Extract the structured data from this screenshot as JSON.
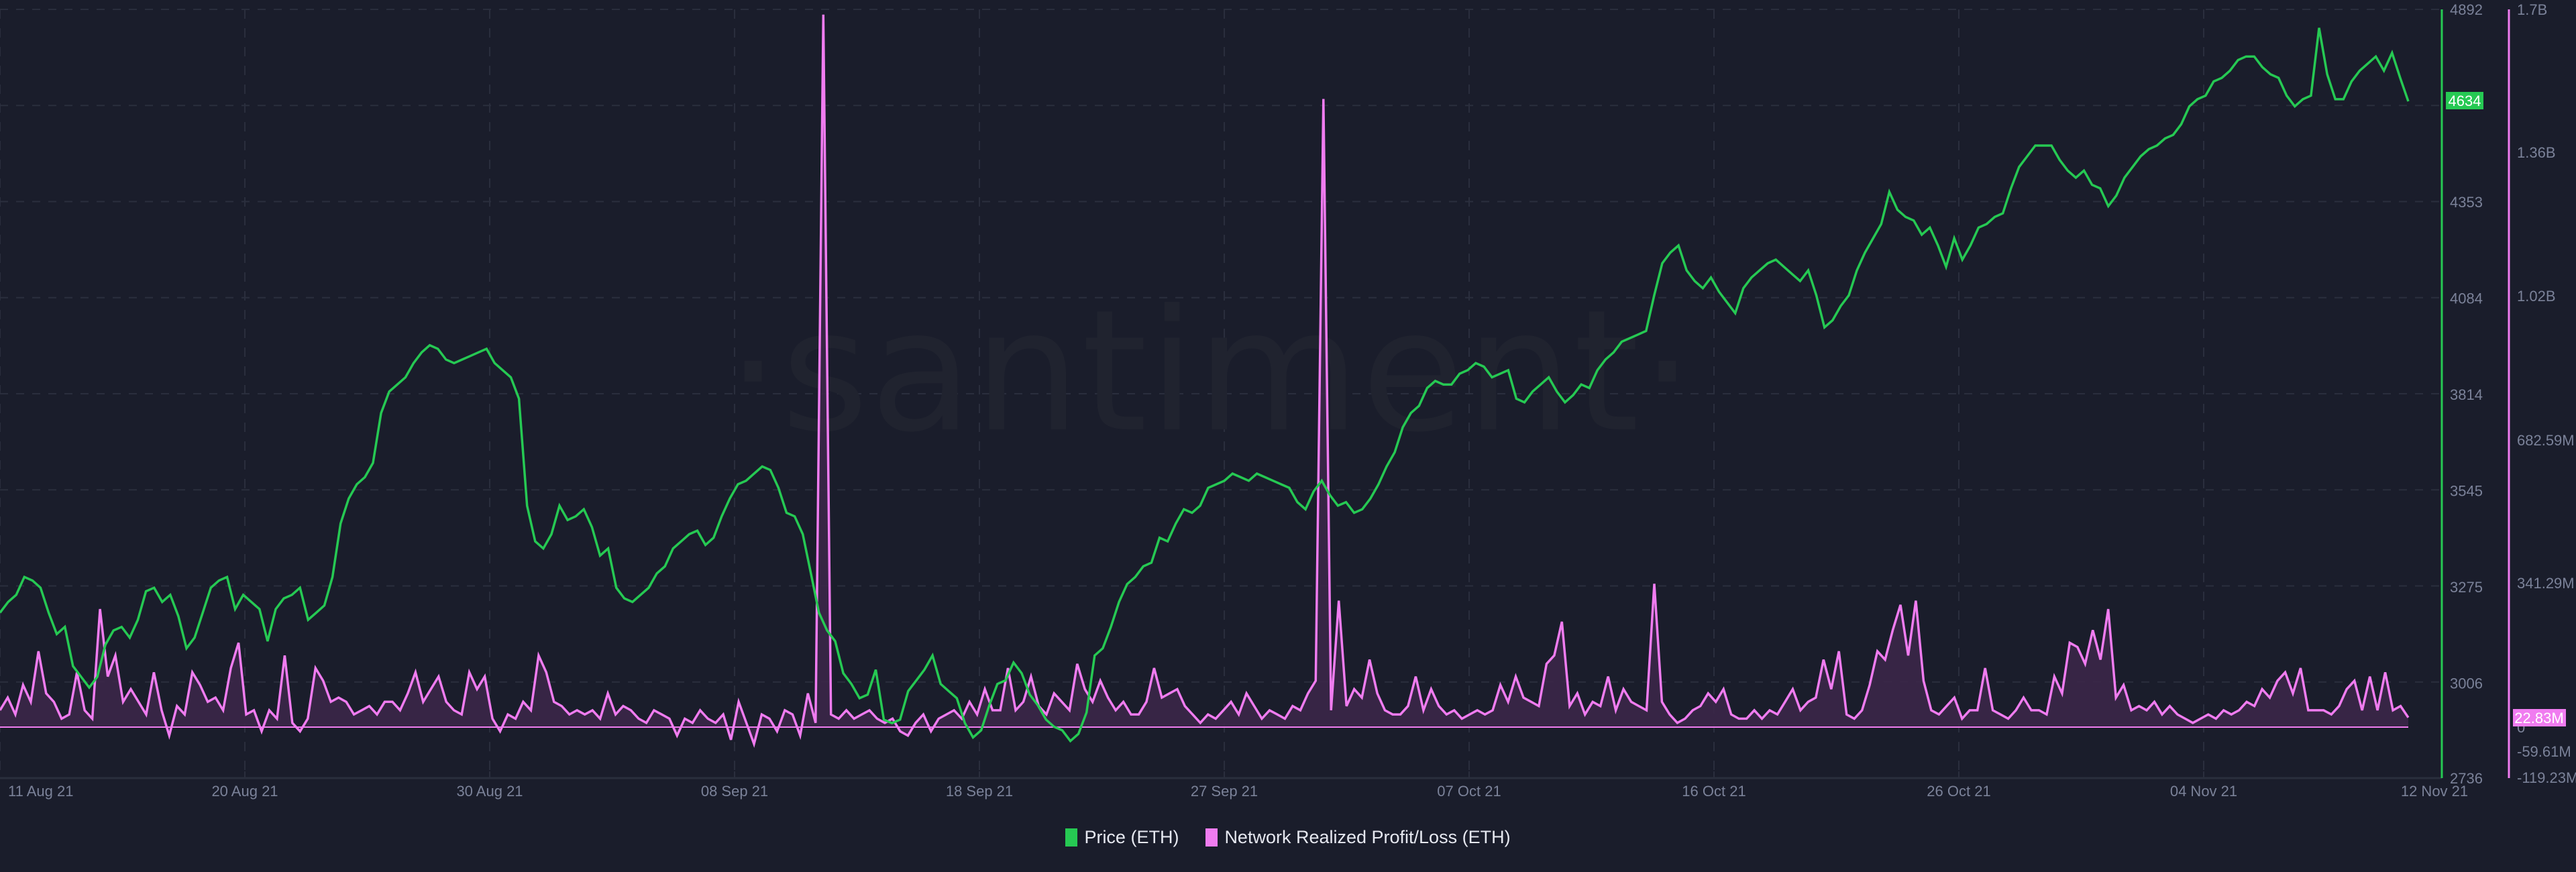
{
  "legend": {
    "items": [
      {
        "label": "Price (ETH)",
        "color": "#26c953"
      },
      {
        "label": "Network Realized Profit/Loss (ETH)",
        "color": "#f07cf0"
      }
    ]
  },
  "watermark": "·santiment·",
  "colors": {
    "background": "#1a1d2b",
    "grid": "#2a2e3d",
    "axis_text": "#7b8299",
    "price": "#26c953",
    "pnl": "#f07cf0",
    "pnl_fill": "#3b2748"
  },
  "price_axis": {
    "ticks": [
      "4892",
      "4353",
      "4084",
      "3814",
      "3545",
      "3275",
      "3006",
      "2736"
    ],
    "current_label": "4634"
  },
  "pnl_axis": {
    "ticks": [
      "1.7B",
      "1.36B",
      "1.02B",
      "682.59M",
      "341.29M",
      "0",
      "-59.61M",
      "-119.23M"
    ],
    "current_label": "22.83M"
  },
  "x_axis": {
    "ticks": [
      "11 Aug 21",
      "20 Aug 21",
      "30 Aug 21",
      "08 Sep 21",
      "18 Sep 21",
      "27 Sep 21",
      "07 Oct 21",
      "16 Oct 21",
      "26 Oct 21",
      "04 Nov 21",
      "12 Nov 21"
    ]
  },
  "chart_data": {
    "type": "line",
    "title": "",
    "xlabel": "",
    "x_start": "11 Aug 21",
    "x_end": "12 Nov 21",
    "x_step_days": 0.5,
    "legend_position": "bottom",
    "grid": true,
    "series": [
      {
        "name": "Price (ETH)",
        "axis": "left-inner",
        "ylim": [
          2736,
          4892
        ],
        "values": [
          3200,
          3230,
          3250,
          3300,
          3290,
          3270,
          3200,
          3140,
          3160,
          3050,
          3020,
          2990,
          3020,
          3110,
          3150,
          3160,
          3130,
          3180,
          3260,
          3270,
          3230,
          3250,
          3190,
          3100,
          3130,
          3200,
          3270,
          3290,
          3300,
          3210,
          3250,
          3230,
          3210,
          3120,
          3210,
          3240,
          3250,
          3270,
          3180,
          3200,
          3220,
          3300,
          3450,
          3520,
          3560,
          3580,
          3620,
          3760,
          3820,
          3840,
          3860,
          3900,
          3930,
          3950,
          3940,
          3910,
          3900,
          3910,
          3920,
          3930,
          3940,
          3900,
          3880,
          3860,
          3800,
          3500,
          3400,
          3380,
          3420,
          3500,
          3460,
          3470,
          3490,
          3440,
          3360,
          3380,
          3270,
          3240,
          3230,
          3250,
          3270,
          3310,
          3330,
          3380,
          3400,
          3420,
          3430,
          3390,
          3410,
          3470,
          3520,
          3560,
          3570,
          3590,
          3610,
          3600,
          3550,
          3480,
          3470,
          3420,
          3310,
          3200,
          3150,
          3120,
          3030,
          3000,
          2960,
          2970,
          3040,
          2900,
          2890,
          2900,
          2980,
          3010,
          3040,
          3080,
          3000,
          2980,
          2960,
          2890,
          2850,
          2870,
          2940,
          3000,
          3010,
          3060,
          3030,
          2970,
          2940,
          2900,
          2880,
          2870,
          2840,
          2860,
          2920,
          3080,
          3100,
          3160,
          3230,
          3280,
          3300,
          3330,
          3340,
          3410,
          3400,
          3450,
          3490,
          3480,
          3500,
          3550,
          3560,
          3570,
          3590,
          3580,
          3570,
          3590,
          3580,
          3570,
          3560,
          3550,
          3510,
          3490,
          3540,
          3570,
          3530,
          3500,
          3510,
          3480,
          3490,
          3520,
          3560,
          3610,
          3650,
          3720,
          3760,
          3780,
          3830,
          3850,
          3840,
          3840,
          3870,
          3880,
          3900,
          3890,
          3860,
          3870,
          3880,
          3800,
          3790,
          3820,
          3840,
          3860,
          3820,
          3790,
          3810,
          3840,
          3830,
          3880,
          3910,
          3930,
          3960,
          3970,
          3980,
          3990,
          4090,
          4180,
          4210,
          4230,
          4160,
          4130,
          4110,
          4140,
          4100,
          4070,
          4040,
          4110,
          4140,
          4160,
          4180,
          4190,
          4170,
          4150,
          4130,
          4160,
          4090,
          4000,
          4020,
          4060,
          4090,
          4160,
          4210,
          4250,
          4290,
          4380,
          4330,
          4310,
          4300,
          4260,
          4280,
          4230,
          4170,
          4250,
          4190,
          4230,
          4280,
          4290,
          4310,
          4320,
          4390,
          4450,
          4480,
          4510,
          4510,
          4510,
          4470,
          4440,
          4420,
          4440,
          4400,
          4390,
          4340,
          4370,
          4420,
          4450,
          4480,
          4500,
          4510,
          4530,
          4540,
          4570,
          4620,
          4640,
          4650,
          4690,
          4700,
          4720,
          4750,
          4760,
          4760,
          4730,
          4710,
          4700,
          4650,
          4620,
          4640,
          4650,
          4840,
          4710,
          4640,
          4640,
          4690,
          4720,
          4740,
          4760,
          4720,
          4770,
          4700,
          4634
        ]
      },
      {
        "name": "Network Realized Profit/Loss (ETH)",
        "axis": "right-outer",
        "ylim": [
          -119230000,
          1700000000
        ],
        "unit": "ETH",
        "values": [
          40000000.0,
          70000000.0,
          30000000.0,
          100000000.0,
          60000000.0,
          180000000.0,
          80000000.0,
          60000000.0,
          20000000.0,
          30000000.0,
          130000000.0,
          40000000.0,
          20000000.0,
          280000000.0,
          120000000.0,
          170000000.0,
          60000000.0,
          90000000.0,
          60000000.0,
          30000000.0,
          130000000.0,
          40000000.0,
          -20000000.0,
          50000000.0,
          30000000.0,
          130000000.0,
          100000000.0,
          60000000.0,
          70000000.0,
          40000000.0,
          140000000.0,
          200000000.0,
          30000000.0,
          40000000.0,
          -10000000.0,
          40000000.0,
          20000000.0,
          170000000.0,
          10000000.0,
          -10000000.0,
          20000000.0,
          140000000.0,
          110000000.0,
          60000000.0,
          70000000.0,
          60000000.0,
          30000000.0,
          40000000.0,
          50000000.0,
          30000000.0,
          60000000.0,
          60000000.0,
          40000000.0,
          80000000.0,
          130000000.0,
          60000000.0,
          90000000.0,
          120000000.0,
          60000000.0,
          40000000.0,
          30000000.0,
          130000000.0,
          90000000.0,
          120000000.0,
          20000000.0,
          -10000000.0,
          30000000.0,
          20000000.0,
          60000000.0,
          40000000.0,
          170000000.0,
          130000000.0,
          60000000.0,
          50000000.0,
          30000000.0,
          40000000.0,
          30000000.0,
          40000000.0,
          20000000.0,
          80000000.0,
          30000000.0,
          50000000.0,
          40000000.0,
          20000000.0,
          10000000.0,
          40000000.0,
          30000000.0,
          20000000.0,
          -20000000.0,
          20000000.0,
          10000000.0,
          40000000.0,
          20000000.0,
          10000000.0,
          30000000.0,
          -30000000.0,
          60000000.0,
          10000000.0,
          -40000000.0,
          30000000.0,
          20000000.0,
          -10000000.0,
          40000000.0,
          30000000.0,
          -20000000.0,
          80000000.0,
          10000000.0,
          1690000000.0,
          30000000.0,
          20000000.0,
          40000000.0,
          20000000.0,
          30000000.0,
          40000000.0,
          20000000.0,
          10000000.0,
          20000000.0,
          -10000000.0,
          -20000000.0,
          10000000.0,
          30000000.0,
          -10000000.0,
          20000000.0,
          30000000.0,
          40000000.0,
          20000000.0,
          60000000.0,
          30000000.0,
          90000000.0,
          40000000.0,
          40000000.0,
          140000000.0,
          40000000.0,
          60000000.0,
          120000000.0,
          50000000.0,
          30000000.0,
          80000000.0,
          60000000.0,
          40000000.0,
          150000000.0,
          90000000.0,
          60000000.0,
          110000000.0,
          70000000.0,
          40000000.0,
          60000000.0,
          30000000.0,
          30000000.0,
          60000000.0,
          140000000.0,
          70000000.0,
          80000000.0,
          90000000.0,
          50000000.0,
          30000000.0,
          10000000.0,
          30000000.0,
          20000000.0,
          40000000.0,
          60000000.0,
          30000000.0,
          80000000.0,
          50000000.0,
          20000000.0,
          40000000.0,
          30000000.0,
          20000000.0,
          50000000.0,
          40000000.0,
          80000000.0,
          110000000.0,
          1490000000.0,
          40000000.0,
          300000000.0,
          50000000.0,
          90000000.0,
          70000000.0,
          160000000.0,
          80000000.0,
          40000000.0,
          30000000.0,
          30000000.0,
          50000000.0,
          120000000.0,
          40000000.0,
          90000000.0,
          50000000.0,
          30000000.0,
          40000000.0,
          20000000.0,
          30000000.0,
          40000000.0,
          30000000.0,
          40000000.0,
          100000000.0,
          60000000.0,
          120000000.0,
          70000000.0,
          60000000.0,
          50000000.0,
          150000000.0,
          170000000.0,
          250000000.0,
          50000000.0,
          80000000.0,
          30000000.0,
          60000000.0,
          50000000.0,
          120000000.0,
          40000000.0,
          90000000.0,
          60000000.0,
          50000000.0,
          40000000.0,
          340000000.0,
          60000000.0,
          30000000.0,
          10000000.0,
          20000000.0,
          40000000.0,
          50000000.0,
          80000000.0,
          60000000.0,
          90000000.0,
          30000000.0,
          20000000.0,
          20000000.0,
          40000000.0,
          20000000.0,
          40000000.0,
          30000000.0,
          60000000.0,
          90000000.0,
          40000000.0,
          60000000.0,
          70000000.0,
          160000000.0,
          90000000.0,
          180000000.0,
          30000000.0,
          20000000.0,
          40000000.0,
          100000000.0,
          180000000.0,
          160000000.0,
          230000000.0,
          290000000.0,
          170000000.0,
          300000000.0,
          110000000.0,
          40000000.0,
          30000000.0,
          50000000.0,
          70000000.0,
          20000000.0,
          40000000.0,
          40000000.0,
          140000000.0,
          40000000.0,
          30000000.0,
          20000000.0,
          40000000.0,
          70000000.0,
          40000000.0,
          40000000.0,
          30000000.0,
          120000000.0,
          80000000.0,
          200000000.0,
          190000000.0,
          150000000.0,
          230000000.0,
          160000000.0,
          280000000.0,
          70000000.0,
          100000000.0,
          40000000.0,
          50000000.0,
          40000000.0,
          60000000.0,
          30000000.0,
          50000000.0,
          30000000.0,
          20000000.0,
          10000000.0,
          20000000.0,
          30000000.0,
          20000000.0,
          40000000.0,
          30000000.0,
          40000000.0,
          60000000.0,
          50000000.0,
          90000000.0,
          70000000.0,
          110000000.0,
          130000000.0,
          80000000.0,
          140000000.0,
          40000000.0,
          40000000.0,
          40000000.0,
          30000000.0,
          50000000.0,
          90000000.0,
          110000000.0,
          40000000.0,
          120000000.0,
          40000000.0,
          130000000.0,
          40000000.0,
          50000000.0,
          22830000.0
        ]
      }
    ]
  }
}
